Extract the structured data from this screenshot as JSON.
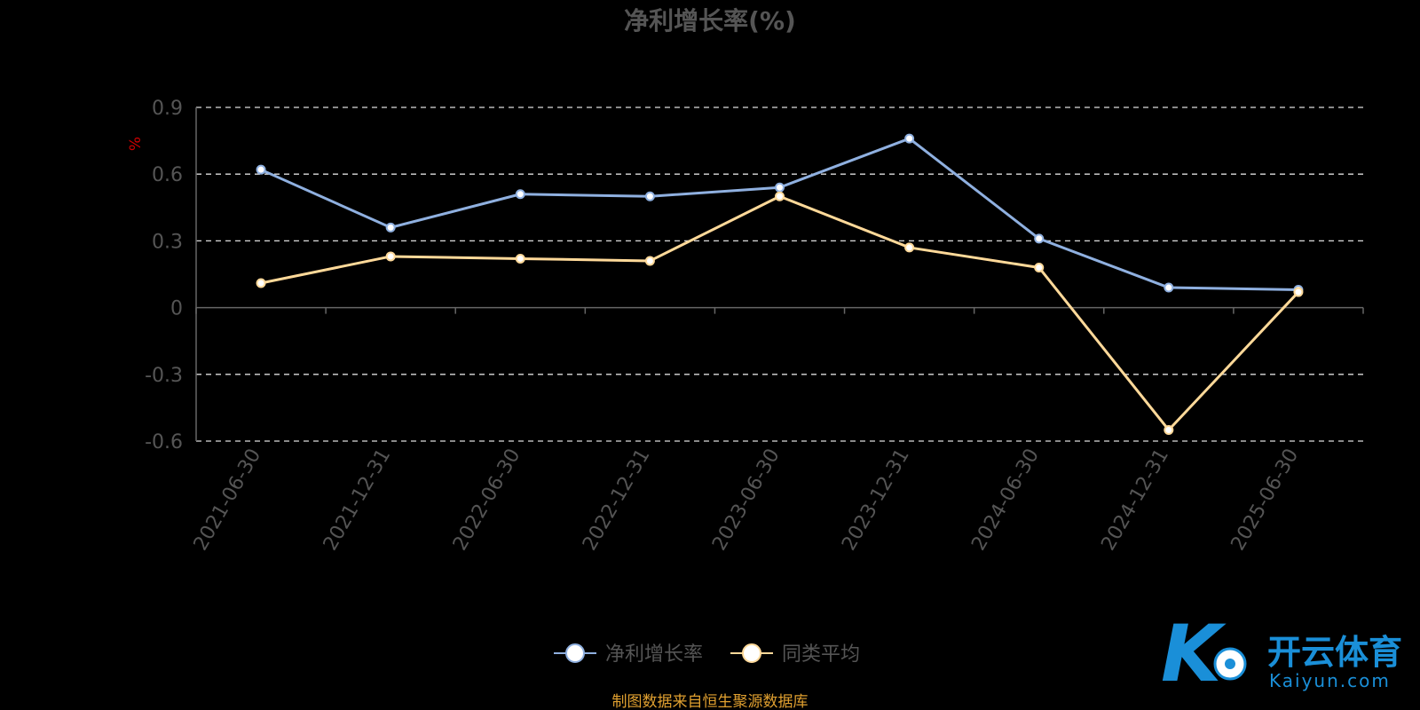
{
  "chart_data": {
    "type": "line",
    "title": "净利增长率(%)",
    "ylabel": "%",
    "categories": [
      "2021-06-30",
      "2021-12-31",
      "2022-06-30",
      "2022-12-31",
      "2023-06-30",
      "2023-12-31",
      "2024-06-30",
      "2024-12-31",
      "2025-06-30"
    ],
    "series": [
      {
        "name": "净利增长率",
        "color": "#8fb0e0",
        "values": [
          0.62,
          0.36,
          0.51,
          0.5,
          0.54,
          0.76,
          0.31,
          0.09,
          0.08
        ]
      },
      {
        "name": "同类平均",
        "color": "#ffd999",
        "values": [
          0.11,
          0.23,
          0.22,
          0.21,
          0.5,
          0.27,
          0.18,
          -0.55,
          0.07
        ]
      }
    ],
    "ylim": [
      -0.6,
      0.9
    ],
    "yticks": [
      "0.9",
      "0.6",
      "0.3",
      "0",
      "-0.3",
      "-0.6"
    ],
    "grid": true,
    "legend": "bottom-center"
  },
  "footer": {
    "source": "制图数据来自恒生聚源数据库"
  },
  "watermark": {
    "cn": "开云体育",
    "en": "Kaiyun.com",
    "mark": "K"
  },
  "colors": {
    "axis": "#666666",
    "grid": "#dddddd",
    "tick_text": "#555555",
    "title": "#555555",
    "ylabel": "#cc0000",
    "source": "#e0a030"
  }
}
